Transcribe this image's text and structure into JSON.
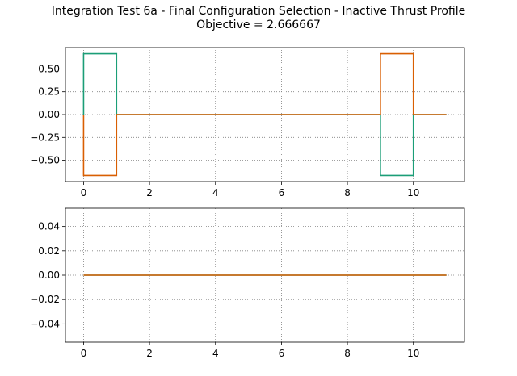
{
  "figure": {
    "title_line1": "Integration Test 6a - Final Configuration Selection - Inactive Thrust Profile",
    "title_line2": "Objective = 2.666667"
  },
  "chart_data": [
    {
      "type": "line",
      "xlim": [
        -0.55,
        11.55
      ],
      "ylim": [
        -0.7333,
        0.7333
      ],
      "grid": true,
      "grid_style": "dotted",
      "x_ticks": [
        0,
        2,
        4,
        6,
        8,
        10
      ],
      "x_tick_labels": [
        "0",
        "2",
        "4",
        "6",
        "8",
        "10"
      ],
      "y_ticks": [
        0.5,
        0.25,
        0.0,
        -0.25,
        -0.5
      ],
      "y_tick_labels": [
        "0.50",
        "0.25",
        "0.00",
        "−0.25",
        "−0.50"
      ],
      "series": [
        {
          "color": "#1b9e77",
          "x": [
            0,
            0,
            1,
            1,
            9,
            9,
            10,
            10,
            11
          ],
          "y": [
            0,
            0.6667,
            0.6667,
            0,
            0,
            -0.6667,
            -0.6667,
            0,
            0
          ]
        },
        {
          "color": "#d95f02",
          "x": [
            0,
            0,
            1,
            1,
            9,
            9,
            10,
            10,
            11
          ],
          "y": [
            0,
            -0.6667,
            -0.6667,
            0,
            0,
            0.6667,
            0.6667,
            0,
            0
          ]
        }
      ]
    },
    {
      "type": "line",
      "xlim": [
        -0.55,
        11.55
      ],
      "ylim": [
        -0.055,
        0.055
      ],
      "grid": true,
      "grid_style": "dotted",
      "x_ticks": [
        0,
        2,
        4,
        6,
        8,
        10
      ],
      "x_tick_labels": [
        "0",
        "2",
        "4",
        "6",
        "8",
        "10"
      ],
      "y_ticks": [
        0.04,
        0.02,
        0.0,
        -0.02,
        -0.04
      ],
      "y_tick_labels": [
        "0.04",
        "0.02",
        "0.00",
        "−0.02",
        "−0.04"
      ],
      "series": [
        {
          "color": "#1b9e77",
          "x": [
            0,
            11
          ],
          "y": [
            0,
            0
          ]
        },
        {
          "color": "#d95f02",
          "x": [
            0,
            11
          ],
          "y": [
            0,
            0
          ]
        }
      ]
    }
  ]
}
